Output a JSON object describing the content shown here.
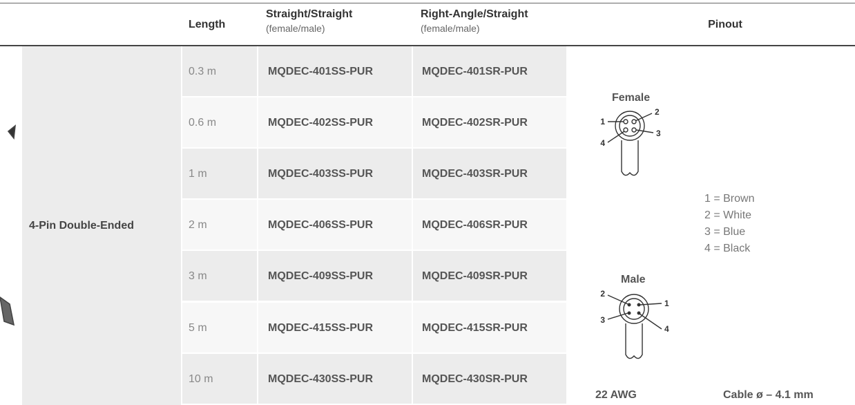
{
  "table": {
    "headers": [
      {
        "label": "Length"
      },
      {
        "label": "Straight/Straight",
        "sub": "(female/male)"
      },
      {
        "label": "Right-Angle/Straight",
        "sub": "(female/male)"
      },
      {
        "label": "Pinout"
      }
    ],
    "group": "4-Pin Double-Ended",
    "rows": [
      [
        "0.3 m",
        "MQDEC-401SS-PUR",
        "MQDEC-401SR-PUR"
      ],
      [
        "0.6 m",
        "MQDEC-402SS-PUR",
        "MQDEC-402SR-PUR"
      ],
      [
        "1 m",
        "MQDEC-403SS-PUR",
        "MQDEC-403SR-PUR"
      ],
      [
        "2 m",
        "MQDEC-406SS-PUR",
        "MQDEC-406SR-PUR"
      ],
      [
        "3 m",
        "MQDEC-409SS-PUR",
        "MQDEC-409SR-PUR"
      ],
      [
        "5 m",
        "MQDEC-415SS-PUR",
        "MQDEC-415SR-PUR"
      ],
      [
        "10 m",
        "MQDEC-430SS-PUR",
        "MQDEC-430SR-PUR"
      ]
    ],
    "pinout": {
      "female": {
        "label": "Female",
        "pins": [
          "1",
          "2",
          "3",
          "4"
        ]
      },
      "male": {
        "label": "Male",
        "pins": [
          "1",
          "2",
          "3",
          "4"
        ]
      },
      "colors": [
        "1 = Brown",
        "2 = White",
        "3 = Blue",
        "4 = Black"
      ],
      "gauge": "22 AWG",
      "cable": "Cable ø – 4.1 mm"
    }
  }
}
